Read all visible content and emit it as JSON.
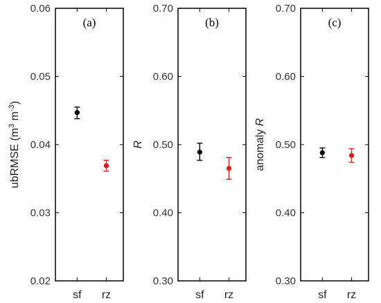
{
  "chart_data": [
    {
      "type": "scatter",
      "panel_label": "(a)",
      "ylabel": "ubRMSE (m",
      "ylabel_sup1": "3",
      "ylabel_mid": " m",
      "ylabel_sup2": "-3",
      "ylabel_end": ")",
      "ylabel_italic": false,
      "ylim": [
        0.02,
        0.06
      ],
      "yticks": [
        "0.02",
        "0.03",
        "0.04",
        "0.05",
        "0.06"
      ],
      "categories": [
        "sf",
        "rz"
      ],
      "points": [
        {
          "category": "sf",
          "value": 0.0447,
          "err_low": 0.0438,
          "err_high": 0.0455,
          "color": "#000000"
        },
        {
          "category": "rz",
          "value": 0.0369,
          "err_low": 0.0361,
          "err_high": 0.0377,
          "color": "#e41a1c"
        }
      ]
    },
    {
      "type": "scatter",
      "panel_label": "(b)",
      "ylabel": "R",
      "ylabel_italic": true,
      "ylim": [
        0.3,
        0.7
      ],
      "yticks": [
        "0.30",
        "0.40",
        "0.50",
        "0.60",
        "0.70"
      ],
      "categories": [
        "sf",
        "rz"
      ],
      "points": [
        {
          "category": "sf",
          "value": 0.489,
          "err_low": 0.477,
          "err_high": 0.502,
          "color": "#000000"
        },
        {
          "category": "rz",
          "value": 0.465,
          "err_low": 0.449,
          "err_high": 0.481,
          "color": "#e41a1c"
        }
      ]
    },
    {
      "type": "scatter",
      "panel_label": "(c)",
      "ylabel": "anomaly ",
      "ylabel_tail": "R",
      "ylabel_italic": false,
      "ylim": [
        0.3,
        0.7
      ],
      "yticks": [
        "0.30",
        "0.40",
        "0.50",
        "0.60",
        "0.70"
      ],
      "categories": [
        "sf",
        "rz"
      ],
      "points": [
        {
          "category": "sf",
          "value": 0.488,
          "err_low": 0.481,
          "err_high": 0.495,
          "color": "#000000"
        },
        {
          "category": "rz",
          "value": 0.484,
          "err_low": 0.474,
          "err_high": 0.494,
          "color": "#e41a1c"
        }
      ]
    }
  ]
}
